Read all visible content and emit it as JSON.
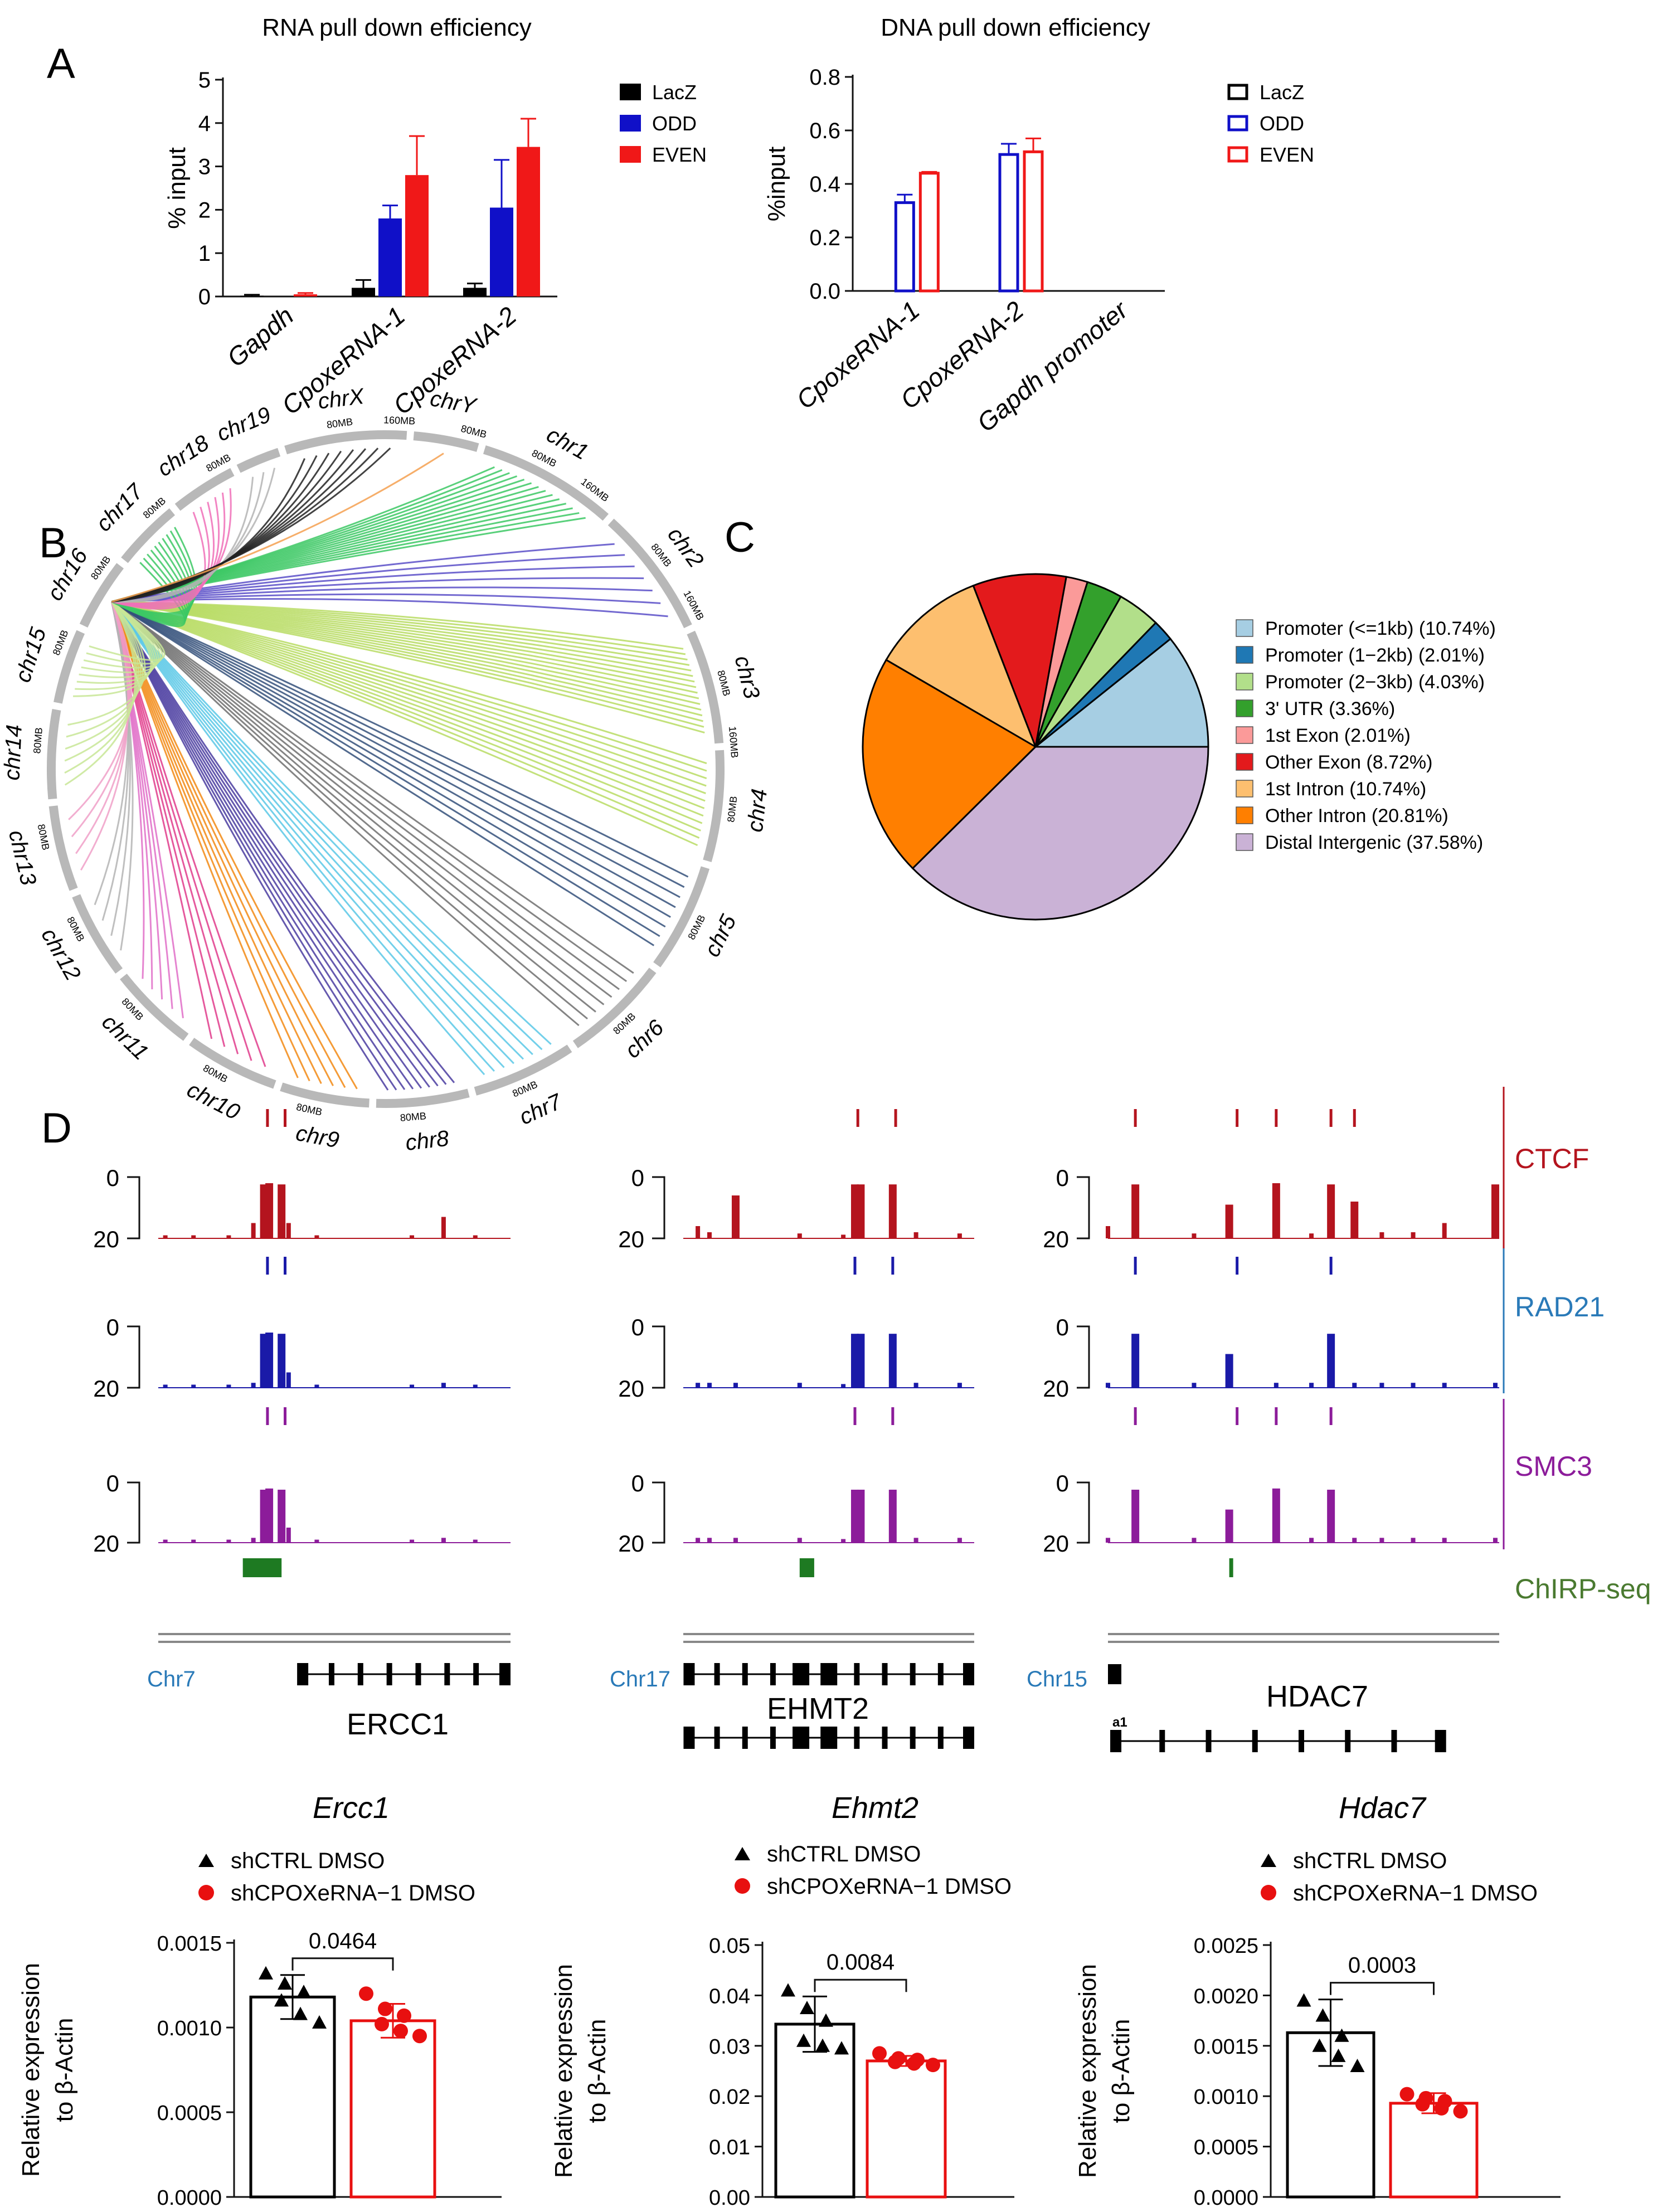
{
  "panel_labels": {
    "a": "A",
    "b": "B",
    "c": "C",
    "d": "D"
  },
  "colors": {
    "lacz": "#000000",
    "odd": "#1010c8",
    "even": "#f01818",
    "ctcf": "#b4141e",
    "rad21": "#1a1aa8",
    "smc3": "#8c1c9a",
    "chirp": "#1e7a22",
    "gene": "#000000",
    "chr_label": "#2a7ab8",
    "ring": "#b8b8b8",
    "ctrl": "#000000",
    "sh": "#e81010"
  },
  "chart_data": [
    {
      "id": "rna_pulldown",
      "type": "bar",
      "title": "RNA pull down efficiency",
      "ylabel": "% input",
      "ylim": [
        0,
        5
      ],
      "yticks": [
        0,
        1,
        2,
        3,
        4,
        5
      ],
      "categories": [
        "Gapdh",
        "CpoxeRNA-1",
        "CpoxeRNA-2"
      ],
      "series": [
        {
          "name": "LacZ",
          "values": [
            0.02,
            0.2,
            0.2
          ],
          "errors": [
            0.02,
            0.18,
            0.1
          ]
        },
        {
          "name": "ODD",
          "values": [
            0.0,
            1.8,
            2.05
          ],
          "errors": [
            0.0,
            0.3,
            1.1
          ]
        },
        {
          "name": "EVEN",
          "values": [
            0.05,
            2.8,
            3.45
          ],
          "errors": [
            0.03,
            0.9,
            0.65
          ]
        }
      ]
    },
    {
      "id": "dna_pulldown",
      "type": "bar",
      "title": "DNA pull down efficiency",
      "ylabel": "%input",
      "ylim": [
        0,
        0.8
      ],
      "yticks": [
        "0.0",
        "0.2",
        "0.4",
        "0.6",
        "0.8"
      ],
      "categories": [
        "CpoxeRNA-1",
        "CpoxeRNA-2",
        "Gapdh promoter"
      ],
      "series": [
        {
          "name": "LacZ",
          "values": [
            0.0,
            0.0,
            0.0
          ],
          "errors": [
            0,
            0,
            0
          ]
        },
        {
          "name": "ODD",
          "values": [
            0.33,
            0.51,
            0.0
          ],
          "errors": [
            0.03,
            0.04,
            0.0
          ]
        },
        {
          "name": "EVEN",
          "values": [
            0.44,
            0.52,
            0.0
          ],
          "errors": [
            0.005,
            0.05,
            0.0
          ]
        }
      ]
    },
    {
      "id": "circos",
      "type": "other",
      "chromosomes": [
        "chr1",
        "chr2",
        "chr3",
        "chr4",
        "chr5",
        "chr6",
        "chr7",
        "chr8",
        "chr9",
        "chr10",
        "chr11",
        "chr12",
        "chr13",
        "chr14",
        "chr15",
        "chr16",
        "chr17",
        "chr18",
        "chr19",
        "chrX",
        "chrY"
      ],
      "scale_labels": [
        "80MB",
        "160MB"
      ],
      "link_source": "chr16"
    },
    {
      "id": "peak_annotation",
      "type": "pie",
      "labels": [
        "Promoter (<=1kb) (10.74%)",
        "Promoter (1−2kb) (2.01%)",
        "Promoter (2−3kb) (4.03%)",
        "3' UTR (3.36%)",
        "1st Exon (2.01%)",
        "Other Exon (8.72%)",
        "1st Intron (10.74%)",
        "Other Intron (20.81%)",
        "Distal Intergenic (37.58%)"
      ],
      "values": [
        10.74,
        2.01,
        4.03,
        3.36,
        2.01,
        8.72,
        10.74,
        20.81,
        37.58
      ],
      "colors": [
        "#a6cee3",
        "#1f78b4",
        "#b2df8a",
        "#33a02c",
        "#fb9a99",
        "#e31a1c",
        "#fdbf6f",
        "#ff7f00",
        "#cab2d6"
      ]
    },
    {
      "id": "genome_tracks",
      "type": "other",
      "track_labels": [
        "CTCF",
        "RAD21",
        "SMC3",
        "ChIRP-seq"
      ],
      "scale_top": "0",
      "scale_bottom": "20",
      "loci": [
        {
          "chrom": "Chr7",
          "gene": "ERCC1"
        },
        {
          "chrom": "Chr17",
          "gene": "EHMT2"
        },
        {
          "chrom": "Chr15",
          "gene": "HDAC7",
          "isoform_label": "a1"
        }
      ]
    },
    {
      "id": "qpcr_ercc1",
      "type": "bar",
      "title": "Ercc1",
      "ylabel": "Relative expression to β-Actin",
      "ylim": [
        0,
        0.0015
      ],
      "yticks": [
        "0.0000",
        "0.0005",
        "0.0010",
        "0.0015"
      ],
      "categories": [
        "shCTRL DMSO",
        "shCPOXeRNA−1 DMSO"
      ],
      "values": [
        0.00118,
        0.00104
      ],
      "errors": [
        0.00013,
        0.0001
      ],
      "points": [
        [
          0.00132,
          0.00126,
          0.00121,
          0.00116,
          0.00108,
          0.00103
        ],
        [
          0.0012,
          0.00111,
          0.00107,
          0.00102,
          0.00098,
          0.00095
        ]
      ],
      "p_value": "0.0464"
    },
    {
      "id": "qpcr_ehmt2",
      "type": "bar",
      "title": "Ehmt2",
      "ylabel": "Relative expression to β-Actin",
      "ylim": [
        0,
        0.05
      ],
      "yticks": [
        "0.00",
        "0.01",
        "0.02",
        "0.03",
        "0.04",
        "0.05"
      ],
      "categories": [
        "shCTRL DMSO",
        "shCPOXeRNA−1 DMSO"
      ],
      "values": [
        0.0343,
        0.027
      ],
      "errors": [
        0.0055,
        0.001
      ],
      "points": [
        [
          0.041,
          0.0375,
          0.035,
          0.031,
          0.03,
          0.0295
        ],
        [
          0.0285,
          0.0275,
          0.0272,
          0.0268,
          0.0265,
          0.0262
        ]
      ],
      "p_value": "0.0084"
    },
    {
      "id": "qpcr_hdac7",
      "type": "bar",
      "title": "Hdac7",
      "ylabel": "Relative expression to β-Actin",
      "ylim": [
        0,
        0.0025
      ],
      "yticks": [
        "0.0000",
        "0.0005",
        "0.0010",
        "0.0015",
        "0.0020",
        "0.0025"
      ],
      "categories": [
        "shCTRL DMSO",
        "shCPOXeRNA−1 DMSO"
      ],
      "values": [
        0.00163,
        0.00093
      ],
      "errors": [
        0.00033,
        0.0001
      ],
      "points": [
        [
          0.00195,
          0.0018,
          0.0016,
          0.0015,
          0.0014,
          0.0013
        ],
        [
          0.00102,
          0.00098,
          0.00095,
          0.00092,
          0.00088,
          0.00085
        ]
      ],
      "p_value": "0.0003"
    }
  ]
}
